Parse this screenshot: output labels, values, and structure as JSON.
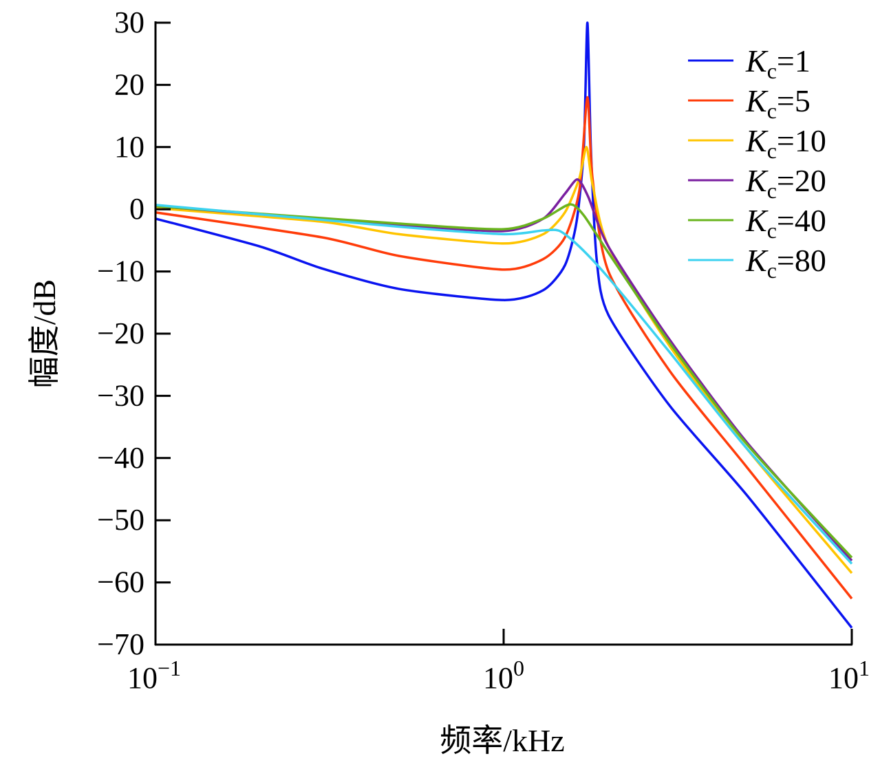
{
  "chart_data": {
    "type": "line",
    "title": "",
    "xlabel": "频率/kHz",
    "ylabel": "幅度/dB",
    "xscale": "log",
    "xlim": [
      0.1,
      10
    ],
    "ylim": [
      -70,
      30
    ],
    "xticks": [
      {
        "base": "10",
        "exp": "−1",
        "value": 0.1
      },
      {
        "base": "10",
        "exp": "0",
        "value": 1
      },
      {
        "base": "10",
        "exp": "1",
        "value": 10
      }
    ],
    "yticks": [
      {
        "label": "30",
        "value": 30
      },
      {
        "label": "20",
        "value": 20
      },
      {
        "label": "10",
        "value": 10
      },
      {
        "label": "0",
        "value": 0
      },
      {
        "label": "−10",
        "value": -10
      },
      {
        "label": "−20",
        "value": -20
      },
      {
        "label": "−30",
        "value": -30
      },
      {
        "label": "−40",
        "value": -40
      },
      {
        "label": "−50",
        "value": -50
      },
      {
        "label": "−60",
        "value": -60
      },
      {
        "label": "−70",
        "value": -70
      }
    ],
    "legend_position": "top-right",
    "series": [
      {
        "name": "Kc=1",
        "k": "K",
        "sub": "c",
        "val": "=1",
        "color": "#0a14f0",
        "points": [
          [
            0.1,
            -1.5
          ],
          [
            0.2,
            -6
          ],
          [
            0.3,
            -9.5
          ],
          [
            0.5,
            -12.8
          ],
          [
            1,
            -14.6
          ],
          [
            1.3,
            -13
          ],
          [
            1.5,
            -9
          ],
          [
            1.62,
            -2
          ],
          [
            1.7,
            10
          ],
          [
            1.74,
            30
          ],
          [
            1.78,
            10
          ],
          [
            1.85,
            -8
          ],
          [
            2,
            -17
          ],
          [
            3,
            -31.6
          ],
          [
            5,
            -46
          ],
          [
            10,
            -67.3
          ]
        ]
      },
      {
        "name": "Kc=5",
        "k": "K",
        "sub": "c",
        "val": "=5",
        "color": "#ff3c0a",
        "points": [
          [
            0.1,
            -0.5
          ],
          [
            0.3,
            -4.5
          ],
          [
            0.5,
            -7.5
          ],
          [
            1,
            -9.7
          ],
          [
            1.3,
            -8
          ],
          [
            1.5,
            -4.5
          ],
          [
            1.65,
            3
          ],
          [
            1.74,
            18
          ],
          [
            1.8,
            5
          ],
          [
            2,
            -10
          ],
          [
            3,
            -26
          ],
          [
            5,
            -41.5
          ],
          [
            10,
            -62.6
          ]
        ]
      },
      {
        "name": "Kc=10",
        "k": "K",
        "sub": "c",
        "val": "=10",
        "color": "#ffc400",
        "points": [
          [
            0.1,
            0.2
          ],
          [
            0.3,
            -2
          ],
          [
            0.5,
            -4
          ],
          [
            1,
            -5.5
          ],
          [
            1.3,
            -4
          ],
          [
            1.5,
            -0.5
          ],
          [
            1.65,
            5
          ],
          [
            1.73,
            10
          ],
          [
            1.8,
            4
          ],
          [
            2,
            -6
          ],
          [
            3,
            -22
          ],
          [
            5,
            -38.5
          ],
          [
            10,
            -58.5
          ]
        ]
      },
      {
        "name": "Kc=20",
        "k": "K",
        "sub": "c",
        "val": "=20",
        "color": "#7a1fa0",
        "points": [
          [
            0.1,
            0.5
          ],
          [
            0.5,
            -2.5
          ],
          [
            1,
            -3.5
          ],
          [
            1.3,
            -1.5
          ],
          [
            1.5,
            2.5
          ],
          [
            1.63,
            4.8
          ],
          [
            1.75,
            2
          ],
          [
            2,
            -6
          ],
          [
            3,
            -21
          ],
          [
            5,
            -37.5
          ],
          [
            10,
            -56.5
          ]
        ]
      },
      {
        "name": "Kc=40",
        "k": "K",
        "sub": "c",
        "val": "=40",
        "color": "#6ab41e",
        "points": [
          [
            0.1,
            0.5
          ],
          [
            0.5,
            -2.3
          ],
          [
            1,
            -3.2
          ],
          [
            1.3,
            -1.5
          ],
          [
            1.55,
            0.8
          ],
          [
            1.7,
            -1
          ],
          [
            2,
            -7
          ],
          [
            3,
            -21.5
          ],
          [
            5,
            -37.8
          ],
          [
            10,
            -56
          ]
        ]
      },
      {
        "name": "Kc=80",
        "k": "K",
        "sub": "c",
        "val": "=80",
        "color": "#3cd2f0",
        "points": [
          [
            0.1,
            0.7
          ],
          [
            0.5,
            -2.8
          ],
          [
            1,
            -4
          ],
          [
            1.3,
            -3.4
          ],
          [
            1.45,
            -3.5
          ],
          [
            1.65,
            -6
          ],
          [
            2,
            -11
          ],
          [
            3,
            -23
          ],
          [
            5,
            -38.5
          ],
          [
            10,
            -57
          ]
        ]
      }
    ]
  }
}
